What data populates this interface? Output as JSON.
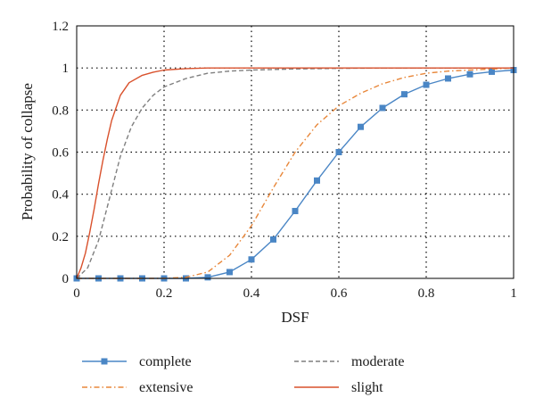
{
  "chart_data": {
    "type": "line",
    "title": "",
    "xlabel": "DSF",
    "ylabel": "Probability of collapse",
    "xlim": [
      0,
      1
    ],
    "ylim": [
      0,
      1.2
    ],
    "xticks": [
      "0",
      "0.2",
      "0.4",
      "0.6",
      "0.8",
      "1"
    ],
    "yticks": [
      "0",
      "0.2",
      "0.4",
      "0.6",
      "0.8",
      "1",
      "1.2"
    ],
    "grid": "dotted",
    "legend_position": "bottom",
    "series": [
      {
        "name": "complete",
        "color": "#4a86c5",
        "style": "solid-square-markers",
        "x": [
          0,
          0.05,
          0.1,
          0.15,
          0.2,
          0.25,
          0.3,
          0.35,
          0.4,
          0.45,
          0.5,
          0.55,
          0.6,
          0.65,
          0.7,
          0.75,
          0.8,
          0.85,
          0.9,
          0.95,
          1.0
        ],
        "y": [
          0,
          0,
          0,
          0,
          0,
          0,
          0.005,
          0.03,
          0.09,
          0.185,
          0.32,
          0.465,
          0.6,
          0.72,
          0.81,
          0.875,
          0.92,
          0.95,
          0.97,
          0.982,
          0.99
        ]
      },
      {
        "name": "extensive",
        "color": "#e8873a",
        "style": "dash-dot",
        "x": [
          0,
          0.05,
          0.1,
          0.15,
          0.2,
          0.25,
          0.3,
          0.35,
          0.4,
          0.45,
          0.5,
          0.55,
          0.6,
          0.65,
          0.7,
          0.75,
          0.8,
          0.85,
          0.9,
          0.95,
          1.0
        ],
        "y": [
          0,
          0,
          0,
          0,
          0,
          0.005,
          0.03,
          0.11,
          0.25,
          0.43,
          0.6,
          0.73,
          0.82,
          0.88,
          0.925,
          0.955,
          0.975,
          0.985,
          0.99,
          0.995,
          1.0
        ]
      },
      {
        "name": "moderate",
        "color": "#7f7f7f",
        "style": "dashed",
        "x": [
          0,
          0.025,
          0.05,
          0.075,
          0.1,
          0.125,
          0.15,
          0.175,
          0.2,
          0.25,
          0.3,
          0.35,
          0.4,
          0.5,
          0.6,
          0.7,
          0.8,
          0.9,
          1.0
        ],
        "y": [
          0,
          0.05,
          0.18,
          0.38,
          0.58,
          0.72,
          0.81,
          0.87,
          0.91,
          0.95,
          0.975,
          0.985,
          0.99,
          0.995,
          0.998,
          1.0,
          1.0,
          1.0,
          1.0
        ]
      },
      {
        "name": "slight",
        "color": "#d9512c",
        "style": "solid",
        "x": [
          0,
          0.01,
          0.02,
          0.03,
          0.04,
          0.05,
          0.06,
          0.07,
          0.08,
          0.1,
          0.12,
          0.15,
          0.175,
          0.2,
          0.25,
          0.3,
          0.4,
          0.5,
          0.6,
          0.8,
          1.0
        ],
        "y": [
          0,
          0.05,
          0.12,
          0.22,
          0.33,
          0.45,
          0.56,
          0.66,
          0.75,
          0.87,
          0.93,
          0.965,
          0.98,
          0.99,
          0.997,
          1.0,
          1.0,
          1.0,
          1.0,
          1.0,
          1.0
        ]
      }
    ]
  }
}
